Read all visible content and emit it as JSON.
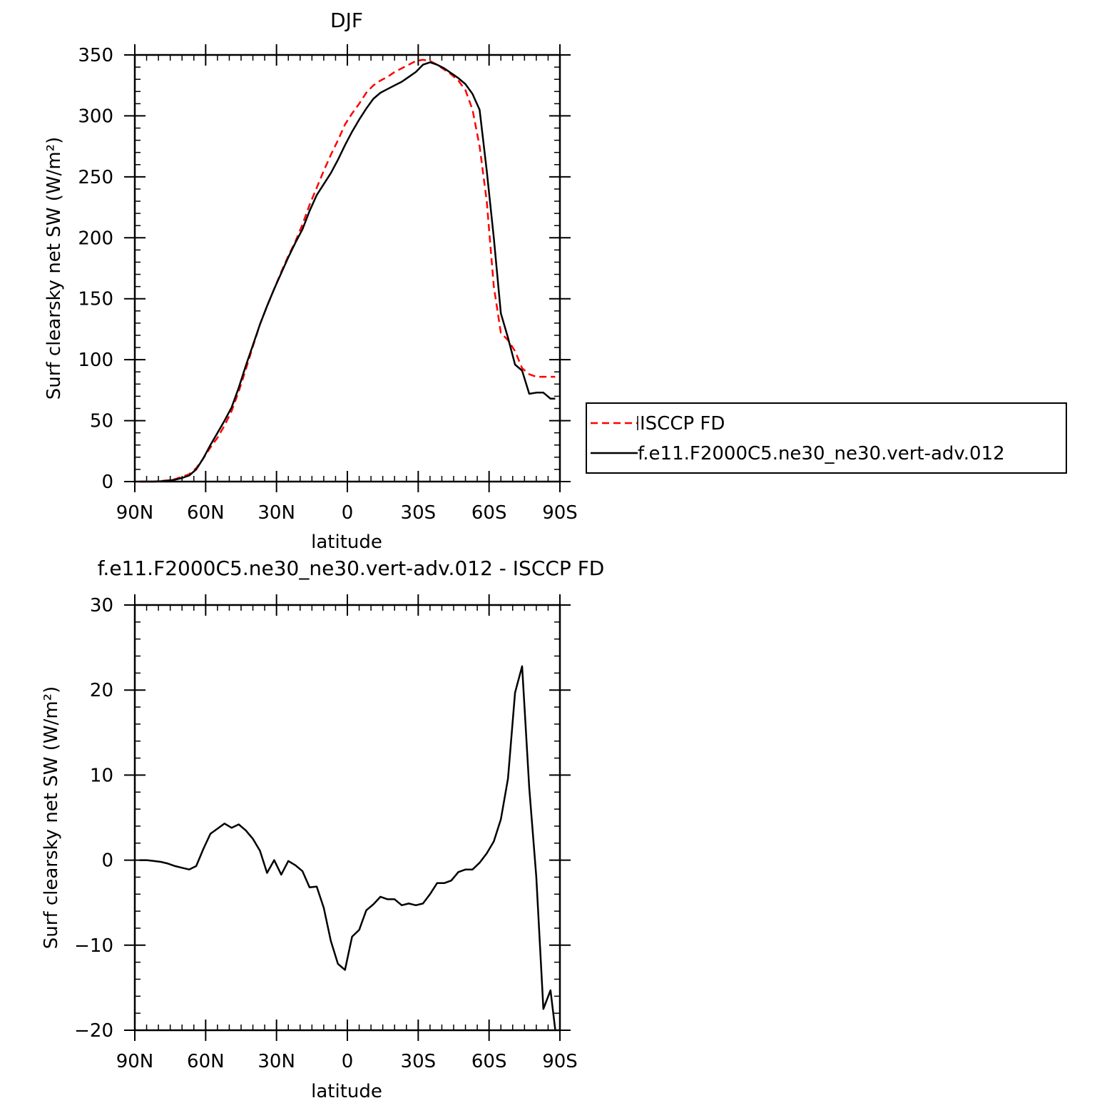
{
  "chart_data": [
    {
      "type": "line",
      "title": "DJF",
      "xlabel": "latitude",
      "ylabel": "Surf clearsky net SW (W/m²)",
      "xlim": [
        -90,
        90
      ],
      "ylim": [
        0,
        350
      ],
      "xticks": [
        -90,
        -60,
        -30,
        0,
        30,
        60,
        90
      ],
      "xtick_labels": [
        "90N",
        "60N",
        "30N",
        "0",
        "30S",
        "60S",
        "90S"
      ],
      "yticks": [
        0,
        50,
        100,
        150,
        200,
        250,
        300,
        350
      ],
      "ytick_labels": [
        "0",
        "50",
        "100",
        "150",
        "200",
        "250",
        "300",
        "350"
      ],
      "grid": false,
      "legend_position": "right",
      "series": [
        {
          "name": "ISCCP FD",
          "color": "#ff0000",
          "dash": "dashed",
          "x": [
            -88,
            -85,
            -82,
            -79,
            -76,
            -73,
            -70,
            -67,
            -64,
            -61,
            -58,
            -55,
            -52,
            -49,
            -46,
            -43,
            -40,
            -37,
            -34,
            -31,
            -28,
            -25,
            -22,
            -19,
            -16,
            -13,
            -10,
            -7,
            -4,
            -1,
            2,
            5,
            8,
            11,
            14,
            17,
            20,
            23,
            26,
            29,
            32,
            35,
            38,
            41,
            44,
            47,
            50,
            53,
            56,
            59,
            62,
            65,
            68,
            71,
            74,
            77,
            80,
            83,
            86,
            88
          ],
          "y": [
            0,
            0,
            0,
            0.5,
            1,
            2,
            4,
            6,
            11,
            19,
            28,
            36,
            46,
            58,
            74,
            92,
            111,
            129,
            144,
            158,
            172,
            185,
            197,
            211,
            227,
            241,
            255,
            268,
            280,
            293,
            302,
            310,
            319,
            325,
            329,
            332,
            336,
            339,
            342,
            345,
            346,
            345,
            342,
            338,
            334,
            329,
            321,
            305,
            275,
            230,
            160,
            122,
            116,
            107,
            93,
            88,
            86,
            86,
            86,
            86
          ]
        },
        {
          "name": "f.e11.F2000C5.ne30_ne30.vert-adv.012",
          "color": "#000000",
          "dash": "solid",
          "x": [
            -88,
            -85,
            -82,
            -79,
            -76,
            -73,
            -70,
            -67,
            -64,
            -61,
            -58,
            -55,
            -52,
            -49,
            -46,
            -43,
            -40,
            -37,
            -34,
            -31,
            -28,
            -25,
            -22,
            -19,
            -16,
            -13,
            -10,
            -7,
            -4,
            -1,
            2,
            5,
            8,
            11,
            14,
            17,
            20,
            23,
            26,
            29,
            32,
            35,
            38,
            41,
            44,
            47,
            50,
            53,
            56,
            59,
            62,
            65,
            68,
            71,
            74,
            77,
            80,
            83,
            86,
            88
          ],
          "y": [
            0,
            0,
            0,
            0.3,
            0.7,
            1.5,
            3,
            5,
            10,
            19,
            30,
            40,
            50,
            61,
            77,
            95,
            112,
            129,
            144,
            158,
            171,
            184,
            196,
            207,
            222,
            235,
            244,
            253,
            264,
            276,
            287,
            297,
            306,
            314,
            319,
            322,
            325,
            328,
            332,
            336,
            342,
            344,
            342,
            339,
            335,
            331,
            326,
            318,
            305,
            255,
            200,
            138,
            118,
            96,
            91,
            72,
            73,
            73,
            68,
            68
          ]
        }
      ]
    },
    {
      "type": "line",
      "title": "f.e11.F2000C5.ne30_ne30.vert-adv.012 - ISCCP FD",
      "xlabel": "latitude",
      "ylabel": "Surf clearsky net SW (W/m²)",
      "xlim": [
        -90,
        90
      ],
      "ylim": [
        -20,
        30
      ],
      "xticks": [
        -90,
        -60,
        -30,
        0,
        30,
        60,
        90
      ],
      "xtick_labels": [
        "90N",
        "60N",
        "30N",
        "0",
        "30S",
        "60S",
        "90S"
      ],
      "yticks": [
        -20,
        -10,
        0,
        10,
        20,
        30
      ],
      "ytick_labels": [
        "−20",
        "−10",
        "0",
        "10",
        "20",
        "30"
      ],
      "grid": false,
      "series": [
        {
          "color": "#000000",
          "dash": "solid",
          "x": [
            -88,
            -85,
            -82,
            -79,
            -76,
            -73,
            -70,
            -67,
            -64,
            -61,
            -58,
            -55,
            -52,
            -49,
            -46,
            -43,
            -40,
            -37,
            -34,
            -31,
            -28,
            -25,
            -22,
            -19,
            -16,
            -13,
            -10,
            -7,
            -4,
            -1,
            2,
            5,
            8,
            11,
            14,
            17,
            20,
            23,
            26,
            29,
            32,
            35,
            38,
            41,
            44,
            47,
            50,
            53,
            56,
            59,
            62,
            65,
            68,
            71,
            74,
            77,
            80,
            83,
            86,
            88
          ],
          "y": [
            0,
            0,
            -0.1,
            -0.2,
            -0.4,
            -0.7,
            -0.9,
            -1.1,
            -0.7,
            1.3,
            3.1,
            3.7,
            4.3,
            3.8,
            4.2,
            3.5,
            2.5,
            1.1,
            -1.5,
            0,
            -1.7,
            -0.1,
            -0.6,
            -1.3,
            -3.2,
            -3.1,
            -5.6,
            -9.5,
            -12.2,
            -12.9,
            -9.0,
            -8.2,
            -5.9,
            -5.2,
            -4.3,
            -4.6,
            -4.6,
            -5.3,
            -5.1,
            -5.3,
            -5.1,
            -4.0,
            -2.7,
            -2.7,
            -2.4,
            -1.4,
            -1.1,
            -1.1,
            -0.3,
            0.8,
            2.2,
            4.8,
            9.6,
            19.7,
            22.8,
            8.5,
            -2.0,
            -17.5,
            -15.3,
            -19.9
          ]
        }
      ]
    }
  ]
}
